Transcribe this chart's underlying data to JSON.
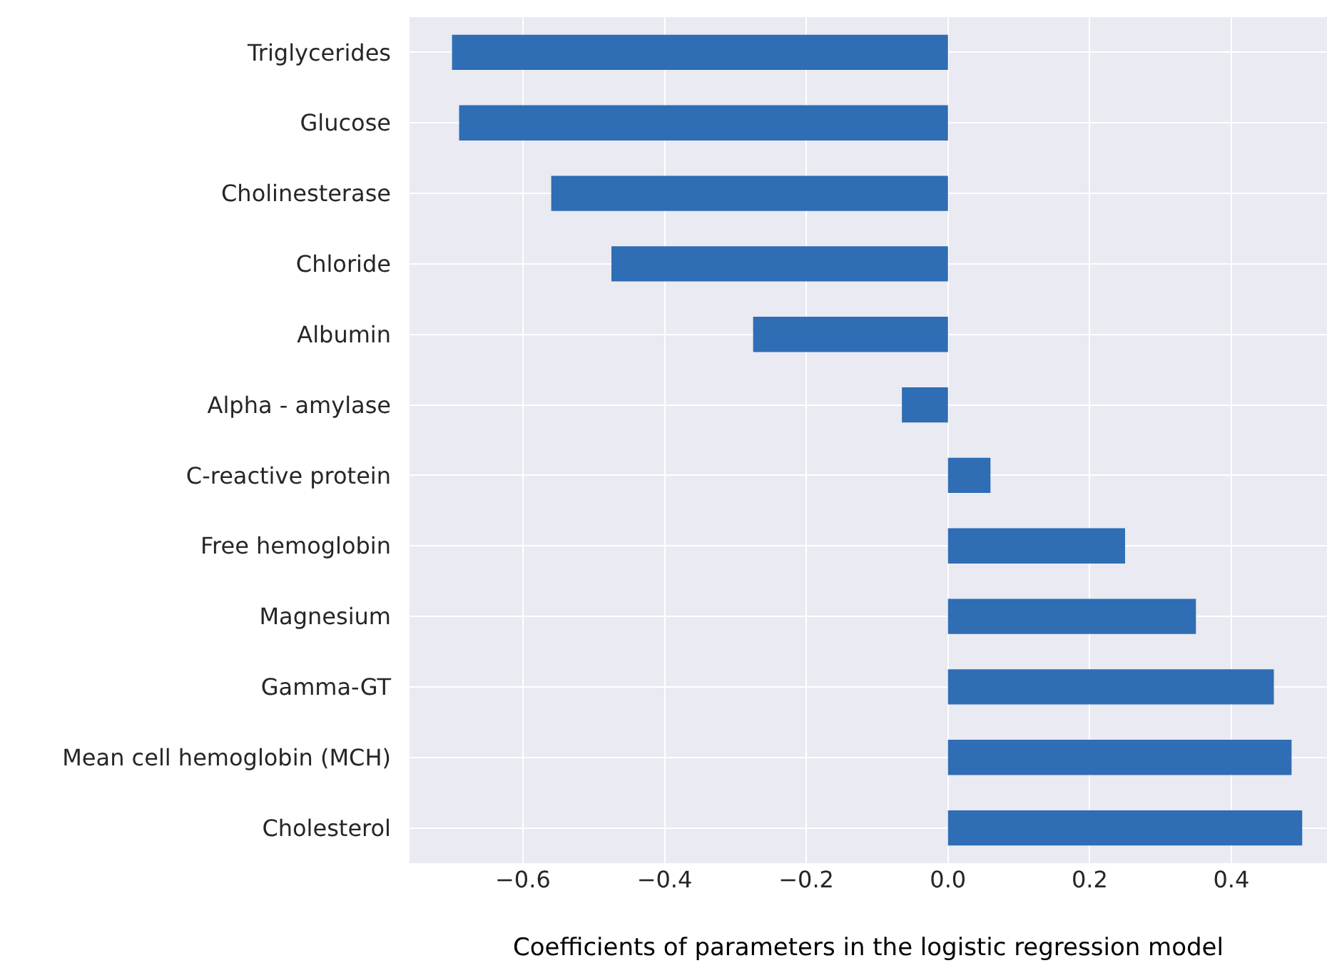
{
  "chart_data": {
    "type": "bar",
    "orientation": "horizontal",
    "xlabel": "Coefficients of parameters in the logistic regression model",
    "categories": [
      "Triglycerides",
      "Glucose",
      "Cholinesterase",
      "Chloride",
      "Albumin",
      "Alpha - amylase",
      "C-reactive protein",
      "Free hemoglobin",
      "Magnesium",
      "Gamma-GT",
      "Mean cell hemoglobin (MCH)",
      "Cholesterol"
    ],
    "values": [
      -0.7,
      -0.69,
      -0.56,
      -0.475,
      -0.275,
      -0.065,
      0.06,
      0.25,
      0.35,
      0.46,
      0.485,
      0.5
    ],
    "color": "#2f6db5",
    "xlim": [
      -0.76,
      0.535
    ],
    "xticks": [
      {
        "value": -0.6,
        "label": "−0.6"
      },
      {
        "value": -0.4,
        "label": "−0.4"
      },
      {
        "value": -0.2,
        "label": "−0.2"
      },
      {
        "value": 0,
        "label": "0.0"
      },
      {
        "value": 0.2,
        "label": "0.2"
      },
      {
        "value": 0.4,
        "label": "0.4"
      }
    ],
    "grid": true,
    "legend": false
  }
}
